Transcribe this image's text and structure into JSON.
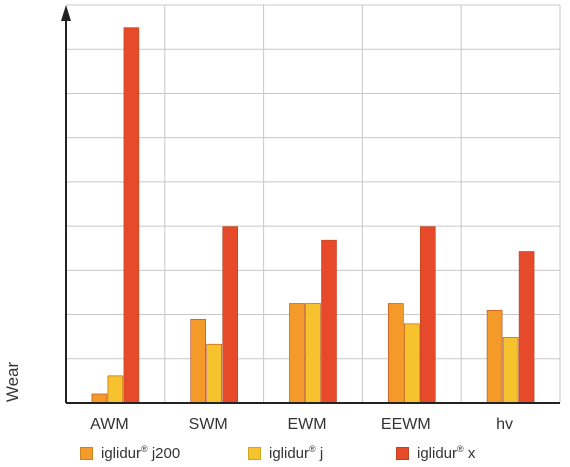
{
  "chart_data": {
    "type": "bar",
    "categories": [
      "AWM",
      "SWM",
      "EWM",
      "EEWM",
      "hv"
    ],
    "series": [
      {
        "name": "iglidur® j200",
        "color": "#f39a2a",
        "values": [
          0.2,
          1.85,
          2.2,
          2.2,
          2.05
        ]
      },
      {
        "name": "iglidur® j",
        "color": "#f6c32e",
        "values": [
          0.6,
          1.3,
          2.2,
          1.75,
          1.45
        ]
      },
      {
        "name": "iglidur® x",
        "color": "#e64a2a",
        "values": [
          8.3,
          3.9,
          3.6,
          3.9,
          3.35
        ]
      }
    ],
    "ylabel": "Wear",
    "xlabel": "",
    "ylim": [
      0,
      8.8
    ],
    "grid": true,
    "y_tick_labels": false,
    "legend_position": "bottom"
  },
  "legend": {
    "items": [
      {
        "name": "iglidur",
        "suffix": " j200",
        "mark": "®",
        "color": "#f39a2a"
      },
      {
        "name": "iglidur",
        "suffix": " j",
        "mark": "®",
        "color": "#f6c32e"
      },
      {
        "name": "iglidur",
        "suffix": " x",
        "mark": "®",
        "color": "#e64a2a"
      }
    ]
  }
}
